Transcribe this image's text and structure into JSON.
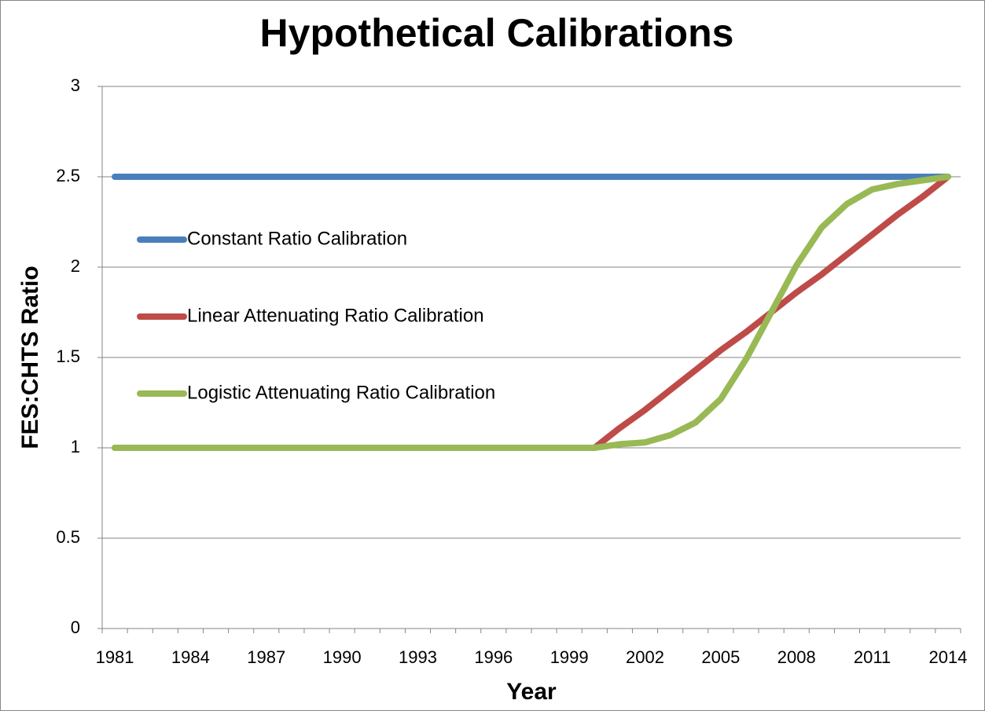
{
  "chart_data": {
    "type": "line",
    "title": "Hypothetical Calibrations",
    "x_label": "Year",
    "y_label": "FES:CHTS Ratio",
    "categories": [
      "1981",
      null,
      null,
      "1984",
      null,
      null,
      "1987",
      null,
      null,
      "1990",
      null,
      null,
      "1993",
      null,
      null,
      "1996",
      null,
      null,
      "1999",
      null,
      null,
      "2002",
      null,
      null,
      "2005",
      null,
      null,
      "2008",
      null,
      null,
      "2011",
      null,
      null,
      "2014"
    ],
    "series": [
      {
        "name": "Constant Ratio Calibration",
        "color": "#4a7ebb",
        "values": [
          2.5,
          2.5,
          2.5,
          2.5,
          2.5,
          2.5,
          2.5,
          2.5,
          2.5,
          2.5,
          2.5,
          2.5,
          2.5,
          2.5,
          2.5,
          2.5,
          2.5,
          2.5,
          2.5,
          2.5,
          2.5,
          2.5,
          2.5,
          2.5,
          2.5,
          2.5,
          2.5,
          2.5,
          2.5,
          2.5,
          2.5,
          2.5,
          2.5,
          2.5
        ]
      },
      {
        "name": "Linear Attenuating Ratio Calibration",
        "color": "#be4b48",
        "values": [
          1,
          1,
          1,
          1,
          1,
          1,
          1,
          1,
          1,
          1,
          1,
          1,
          1,
          1,
          1,
          1,
          1,
          1,
          1,
          1,
          1.11,
          1.21,
          1.32,
          1.43,
          1.54,
          1.64,
          1.75,
          1.86,
          1.96,
          2.07,
          2.18,
          2.29,
          2.39,
          2.5
        ]
      },
      {
        "name": "Logistic Attenuating Ratio Calibration",
        "color": "#98b954",
        "values": [
          1,
          1,
          1,
          1,
          1,
          1,
          1,
          1,
          1,
          1,
          1,
          1,
          1,
          1,
          1,
          1,
          1,
          1,
          1,
          1,
          1.02,
          1.03,
          1.07,
          1.14,
          1.27,
          1.49,
          1.75,
          2.01,
          2.22,
          2.35,
          2.43,
          2.46,
          2.48,
          2.5
        ]
      }
    ],
    "ylim": [
      0,
      3
    ],
    "yticks": [
      0,
      0.5,
      1,
      1.5,
      2,
      2.5,
      3
    ],
    "grid": true,
    "legend": "left"
  }
}
